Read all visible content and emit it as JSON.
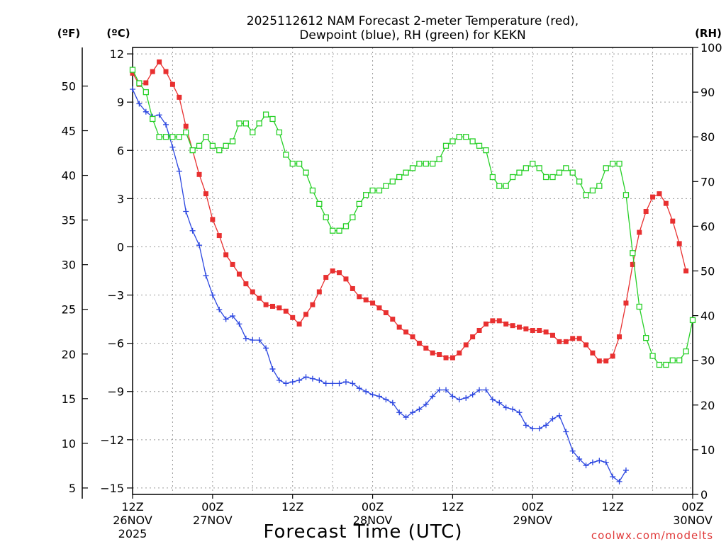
{
  "chart_data": {
    "type": "line",
    "title_line1": "2025112612 NAM Forecast 2-meter Temperature (red),",
    "title_line2": "Dewpoint (blue), RH (green) for KEKN",
    "unit_f": "(ºF)",
    "unit_c": "(ºC)",
    "unit_rh": "(RH)",
    "xlabel": "Forecast Time (UTC)",
    "credit": "coolwx.com/modelts",
    "xlim": [
      0,
      84
    ],
    "ylim_c": [
      -15.4,
      12.4
    ],
    "ylim_rh": [
      0,
      100
    ],
    "c_ticks": [
      {
        "v": 12,
        "label": "12"
      },
      {
        "v": 9,
        "label": "9"
      },
      {
        "v": 6,
        "label": "6"
      },
      {
        "v": 3,
        "label": "3"
      },
      {
        "v": 0,
        "label": "0"
      },
      {
        "v": -3,
        "label": "−3"
      },
      {
        "v": -6,
        "label": "−6"
      },
      {
        "v": -9,
        "label": "−9"
      },
      {
        "v": -12,
        "label": "−12"
      },
      {
        "v": -15,
        "label": "−15"
      }
    ],
    "f_ticks": [
      {
        "v": 50,
        "label": "50"
      },
      {
        "v": 45,
        "label": "45"
      },
      {
        "v": 40,
        "label": "40"
      },
      {
        "v": 35,
        "label": "35"
      },
      {
        "v": 30,
        "label": "30"
      },
      {
        "v": 25,
        "label": "25"
      },
      {
        "v": 20,
        "label": "20"
      },
      {
        "v": 15,
        "label": "15"
      },
      {
        "v": 10,
        "label": "10"
      },
      {
        "v": 5,
        "label": "5"
      }
    ],
    "rh_ticks": [
      {
        "v": 100,
        "label": "100"
      },
      {
        "v": 90,
        "label": "90"
      },
      {
        "v": 80,
        "label": "80"
      },
      {
        "v": 70,
        "label": "70"
      },
      {
        "v": 60,
        "label": "60"
      },
      {
        "v": 50,
        "label": "50"
      },
      {
        "v": 40,
        "label": "40"
      },
      {
        "v": 30,
        "label": "30"
      },
      {
        "v": 20,
        "label": "20"
      },
      {
        "v": 10,
        "label": "10"
      },
      {
        "v": 0,
        "label": "0"
      }
    ],
    "x_ticks": [
      {
        "h": 0,
        "l1": "12Z",
        "l2": "26NOV",
        "l3": "2025"
      },
      {
        "h": 12,
        "l1": "00Z",
        "l2": "27NOV",
        "l3": ""
      },
      {
        "h": 24,
        "l1": "12Z",
        "l2": "",
        "l3": ""
      },
      {
        "h": 36,
        "l1": "00Z",
        "l2": "28NOV",
        "l3": ""
      },
      {
        "h": 48,
        "l1": "12Z",
        "l2": "",
        "l3": ""
      },
      {
        "h": 60,
        "l1": "00Z",
        "l2": "29NOV",
        "l3": ""
      },
      {
        "h": 72,
        "l1": "12Z",
        "l2": "",
        "l3": ""
      },
      {
        "h": 84,
        "l1": "00Z",
        "l2": "30NOV",
        "l3": ""
      }
    ],
    "series": [
      {
        "name": "2-meter Temperature",
        "units": "°C",
        "color": "#e83030",
        "marker": "square-filled",
        "points": [
          [
            0,
            10.8
          ],
          [
            1,
            10.1
          ],
          [
            2,
            10.2
          ],
          [
            3,
            10.9
          ],
          [
            4,
            11.5
          ],
          [
            5,
            10.9
          ],
          [
            6,
            10.1
          ],
          [
            7,
            9.3
          ],
          [
            8,
            7.5
          ],
          [
            9,
            6.0
          ],
          [
            10,
            4.5
          ],
          [
            11,
            3.3
          ],
          [
            12,
            1.7
          ],
          [
            13,
            0.7
          ],
          [
            14,
            -0.5
          ],
          [
            15,
            -1.1
          ],
          [
            16,
            -1.7
          ],
          [
            17,
            -2.3
          ],
          [
            18,
            -2.8
          ],
          [
            19,
            -3.2
          ],
          [
            20,
            -3.6
          ],
          [
            21,
            -3.7
          ],
          [
            22,
            -3.8
          ],
          [
            23,
            -4.0
          ],
          [
            24,
            -4.4
          ],
          [
            25,
            -4.8
          ],
          [
            26,
            -4.2
          ],
          [
            27,
            -3.6
          ],
          [
            28,
            -2.8
          ],
          [
            29,
            -1.9
          ],
          [
            30,
            -1.5
          ],
          [
            31,
            -1.6
          ],
          [
            32,
            -2.0
          ],
          [
            33,
            -2.6
          ],
          [
            34,
            -3.1
          ],
          [
            35,
            -3.3
          ],
          [
            36,
            -3.5
          ],
          [
            37,
            -3.8
          ],
          [
            38,
            -4.1
          ],
          [
            39,
            -4.5
          ],
          [
            40,
            -5.0
          ],
          [
            41,
            -5.3
          ],
          [
            42,
            -5.6
          ],
          [
            43,
            -6.0
          ],
          [
            44,
            -6.3
          ],
          [
            45,
            -6.6
          ],
          [
            46,
            -6.7
          ],
          [
            47,
            -6.9
          ],
          [
            48,
            -6.9
          ],
          [
            49,
            -6.6
          ],
          [
            50,
            -6.1
          ],
          [
            51,
            -5.6
          ],
          [
            52,
            -5.2
          ],
          [
            53,
            -4.8
          ],
          [
            54,
            -4.6
          ],
          [
            55,
            -4.6
          ],
          [
            56,
            -4.8
          ],
          [
            57,
            -4.9
          ],
          [
            58,
            -5.0
          ],
          [
            59,
            -5.1
          ],
          [
            60,
            -5.2
          ],
          [
            61,
            -5.2
          ],
          [
            62,
            -5.3
          ],
          [
            63,
            -5.5
          ],
          [
            64,
            -5.9
          ],
          [
            65,
            -5.9
          ],
          [
            66,
            -5.7
          ],
          [
            67,
            -5.7
          ],
          [
            68,
            -6.1
          ],
          [
            69,
            -6.6
          ],
          [
            70,
            -7.1
          ],
          [
            71,
            -7.1
          ],
          [
            72,
            -6.8
          ],
          [
            73,
            -5.6
          ],
          [
            74,
            -3.5
          ],
          [
            75,
            -1.1
          ],
          [
            76,
            0.9
          ],
          [
            77,
            2.2
          ],
          [
            78,
            3.1
          ],
          [
            79,
            3.3
          ],
          [
            80,
            2.7
          ],
          [
            81,
            1.6
          ],
          [
            82,
            0.2
          ],
          [
            83,
            -1.5
          ]
        ]
      },
      {
        "name": "Dewpoint",
        "units": "°C",
        "color": "#2b46e0",
        "marker": "plus",
        "points": [
          [
            0,
            9.8
          ],
          [
            1,
            8.9
          ],
          [
            2,
            8.4
          ],
          [
            3,
            8.1
          ],
          [
            4,
            8.2
          ],
          [
            5,
            7.6
          ],
          [
            6,
            6.2
          ],
          [
            7,
            4.7
          ],
          [
            8,
            2.2
          ],
          [
            9,
            1.0
          ],
          [
            10,
            0.1
          ],
          [
            11,
            -1.8
          ],
          [
            12,
            -3.0
          ],
          [
            13,
            -3.9
          ],
          [
            14,
            -4.5
          ],
          [
            15,
            -4.3
          ],
          [
            16,
            -4.8
          ],
          [
            17,
            -5.7
          ],
          [
            18,
            -5.8
          ],
          [
            19,
            -5.8
          ],
          [
            20,
            -6.3
          ],
          [
            21,
            -7.6
          ],
          [
            22,
            -8.3
          ],
          [
            23,
            -8.5
          ],
          [
            24,
            -8.4
          ],
          [
            25,
            -8.3
          ],
          [
            26,
            -8.1
          ],
          [
            27,
            -8.2
          ],
          [
            28,
            -8.3
          ],
          [
            29,
            -8.5
          ],
          [
            30,
            -8.5
          ],
          [
            31,
            -8.5
          ],
          [
            32,
            -8.4
          ],
          [
            33,
            -8.5
          ],
          [
            34,
            -8.8
          ],
          [
            35,
            -9.0
          ],
          [
            36,
            -9.2
          ],
          [
            37,
            -9.3
          ],
          [
            38,
            -9.5
          ],
          [
            39,
            -9.7
          ],
          [
            40,
            -10.3
          ],
          [
            41,
            -10.6
          ],
          [
            42,
            -10.3
          ],
          [
            43,
            -10.1
          ],
          [
            44,
            -9.8
          ],
          [
            45,
            -9.3
          ],
          [
            46,
            -8.9
          ],
          [
            47,
            -8.9
          ],
          [
            48,
            -9.3
          ],
          [
            49,
            -9.5
          ],
          [
            50,
            -9.4
          ],
          [
            51,
            -9.2
          ],
          [
            52,
            -8.9
          ],
          [
            53,
            -8.9
          ],
          [
            54,
            -9.5
          ],
          [
            55,
            -9.7
          ],
          [
            56,
            -10.0
          ],
          [
            57,
            -10.1
          ],
          [
            58,
            -10.3
          ],
          [
            59,
            -11.1
          ],
          [
            60,
            -11.3
          ],
          [
            61,
            -11.3
          ],
          [
            62,
            -11.1
          ],
          [
            63,
            -10.7
          ],
          [
            64,
            -10.5
          ],
          [
            65,
            -11.5
          ],
          [
            66,
            -12.7
          ],
          [
            67,
            -13.2
          ],
          [
            68,
            -13.6
          ],
          [
            69,
            -13.4
          ],
          [
            70,
            -13.3
          ],
          [
            71,
            -13.4
          ],
          [
            72,
            -14.3
          ],
          [
            73,
            -14.6
          ],
          [
            74,
            -13.9
          ]
        ]
      },
      {
        "name": "RH",
        "units": "%",
        "color": "#28d028",
        "marker": "square-open",
        "points": [
          [
            0,
            95
          ],
          [
            1,
            92
          ],
          [
            2,
            90
          ],
          [
            3,
            84
          ],
          [
            4,
            80
          ],
          [
            5,
            80
          ],
          [
            6,
            80
          ],
          [
            7,
            80
          ],
          [
            8,
            81
          ],
          [
            9,
            77
          ],
          [
            10,
            78
          ],
          [
            11,
            80
          ],
          [
            12,
            78
          ],
          [
            13,
            77
          ],
          [
            14,
            78
          ],
          [
            15,
            79
          ],
          [
            16,
            83
          ],
          [
            17,
            83
          ],
          [
            18,
            81
          ],
          [
            19,
            83
          ],
          [
            20,
            85
          ],
          [
            21,
            84
          ],
          [
            22,
            81
          ],
          [
            23,
            76
          ],
          [
            24,
            74
          ],
          [
            25,
            74
          ],
          [
            26,
            72
          ],
          [
            27,
            68
          ],
          [
            28,
            65
          ],
          [
            29,
            62
          ],
          [
            30,
            59
          ],
          [
            31,
            59
          ],
          [
            32,
            60
          ],
          [
            33,
            62
          ],
          [
            34,
            65
          ],
          [
            35,
            67
          ],
          [
            36,
            68
          ],
          [
            37,
            68
          ],
          [
            38,
            69
          ],
          [
            39,
            70
          ],
          [
            40,
            71
          ],
          [
            41,
            72
          ],
          [
            42,
            73
          ],
          [
            43,
            74
          ],
          [
            44,
            74
          ],
          [
            45,
            74
          ],
          [
            46,
            75
          ],
          [
            47,
            78
          ],
          [
            48,
            79
          ],
          [
            49,
            80
          ],
          [
            50,
            80
          ],
          [
            51,
            79
          ],
          [
            52,
            78
          ],
          [
            53,
            77
          ],
          [
            54,
            71
          ],
          [
            55,
            69
          ],
          [
            56,
            69
          ],
          [
            57,
            71
          ],
          [
            58,
            72
          ],
          [
            59,
            73
          ],
          [
            60,
            74
          ],
          [
            61,
            73
          ],
          [
            62,
            71
          ],
          [
            63,
            71
          ],
          [
            64,
            72
          ],
          [
            65,
            73
          ],
          [
            66,
            72
          ],
          [
            67,
            70
          ],
          [
            68,
            67
          ],
          [
            69,
            68
          ],
          [
            70,
            69
          ],
          [
            71,
            73
          ],
          [
            72,
            74
          ],
          [
            73,
            74
          ],
          [
            74,
            67
          ],
          [
            75,
            54
          ],
          [
            76,
            42
          ],
          [
            77,
            35
          ],
          [
            78,
            31
          ],
          [
            79,
            29
          ],
          [
            80,
            29
          ],
          [
            81,
            30
          ],
          [
            82,
            30
          ],
          [
            83,
            32
          ],
          [
            84,
            39
          ]
        ]
      }
    ]
  }
}
